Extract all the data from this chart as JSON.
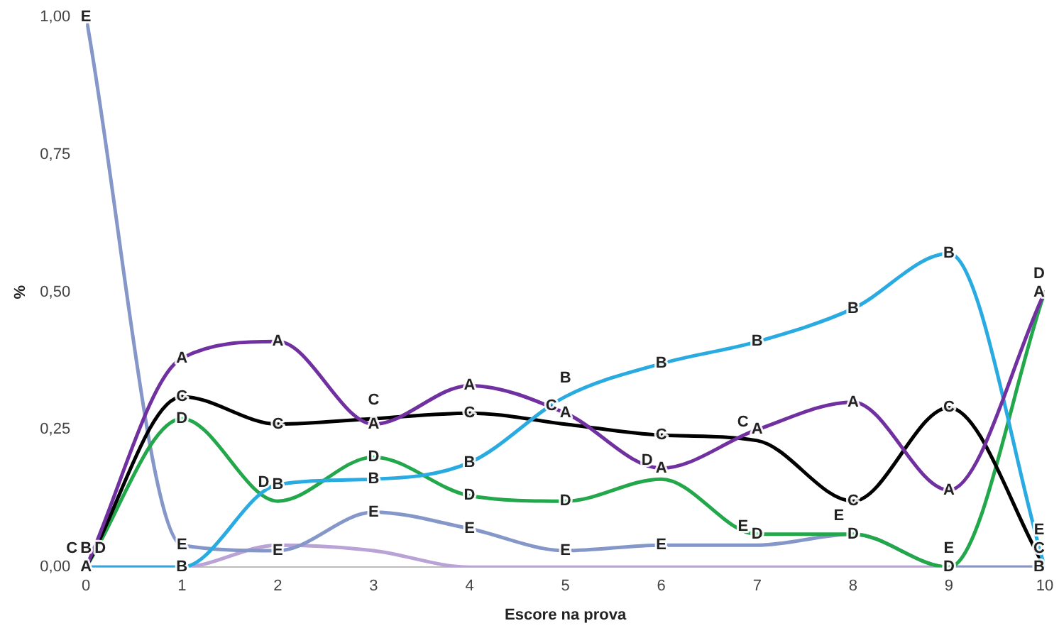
{
  "chart_data": {
    "type": "line",
    "xlabel": "Escore na prova",
    "ylabel": "%",
    "x": [
      0,
      1,
      2,
      3,
      4,
      5,
      6,
      7,
      8,
      9,
      10
    ],
    "series": [
      {
        "name": "A",
        "color": "#7030a0",
        "values": [
          0,
          0.38,
          0.41,
          0.26,
          0.33,
          0.28,
          0.18,
          0.25,
          0.3,
          0.14,
          0.5
        ]
      },
      {
        "name": "B",
        "color": "#29abe2",
        "values": [
          0,
          0,
          0.15,
          0.16,
          0.19,
          0.31,
          0.37,
          0.41,
          0.47,
          0.57,
          0
        ]
      },
      {
        "name": "C",
        "color": "#000000",
        "values": [
          0,
          0.31,
          0.26,
          0.27,
          0.28,
          0.26,
          0.24,
          0.23,
          0.12,
          0.29,
          0
        ]
      },
      {
        "name": "D",
        "color": "#22a84a",
        "values": [
          0,
          0.27,
          0.12,
          0.2,
          0.13,
          0.12,
          0.16,
          0.06,
          0.06,
          0,
          0.5
        ]
      },
      {
        "name": "E",
        "color": "#8597c9",
        "values": [
          1.0,
          0.04,
          0.03,
          0.1,
          0.07,
          0.03,
          0.04,
          0.04,
          0.06,
          0,
          0
        ]
      },
      {
        "color": "#b9a3d6",
        "values": [
          0,
          0,
          0.04,
          0.03,
          0,
          0,
          0,
          0,
          0,
          0,
          0
        ]
      }
    ],
    "xlim": [
      0,
      10
    ],
    "xticks": [
      0,
      1,
      2,
      3,
      4,
      5,
      6,
      7,
      8,
      9,
      10
    ],
    "ylim": [
      0,
      1
    ],
    "yticks": [
      {
        "value": 0,
        "label": "0,00"
      },
      {
        "value": 0.25,
        "label": "0,25"
      },
      {
        "value": 0.5,
        "label": "0,50"
      },
      {
        "value": 0.75,
        "label": "0,75"
      },
      {
        "value": 1,
        "label": "1,00"
      }
    ],
    "grid": false,
    "legend": false,
    "marker": "none",
    "line_style": "solid"
  }
}
